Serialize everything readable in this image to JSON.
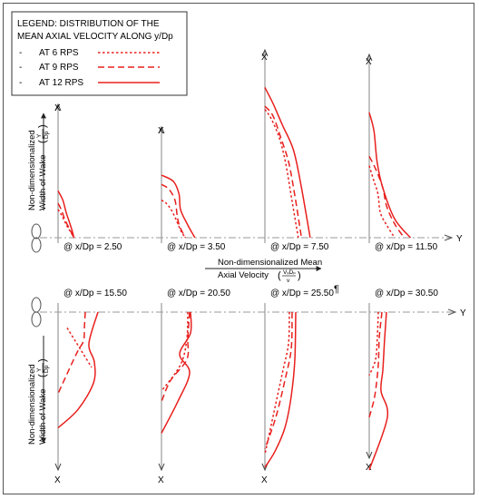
{
  "legend": {
    "title_line1": "LEGEND: DISTRIBUTION OF THE",
    "title_line2": "MEAN AXIAL VELOCITY ALONG y/Dp",
    "items": [
      {
        "bullet": "-",
        "label": "AT 6 RPS",
        "style": "dotted"
      },
      {
        "bullet": "-",
        "label": "AT 9 RPS",
        "style": "dashed"
      },
      {
        "bullet": "-",
        "label": "AT 12 RPS",
        "style": "solid"
      }
    ]
  },
  "labels": {
    "yaxis_line1": "Non-dimensionalized",
    "yaxis_line2": "Width of Wake",
    "frac_top": "Y",
    "frac_bottom": "Dp",
    "vel_line1": "Non-dimensionalized Mean",
    "vel_line2": "Axial Velocity",
    "vfrac_top": "VₓDₚ",
    "vfrac_bottom": "v",
    "pilcrow": "¶",
    "x_axis": "X",
    "y_axis": "Y"
  },
  "colors": {
    "curve": "#e8201e",
    "axis": "#9a9a9a",
    "frame": "#555555"
  },
  "chart_data": [
    {
      "type": "line",
      "title": "@ x/Dp = 2.50",
      "series": [
        {
          "name": "AT 6 RPS",
          "style": "dotted",
          "x": [
            0,
            0.2,
            0.4,
            0.6,
            0.8,
            1.0
          ],
          "y": [
            0.45,
            0.37,
            0.27,
            0.17,
            0.09,
            0.0
          ]
        },
        {
          "name": "AT 9 RPS",
          "style": "dashed",
          "x": [
            0,
            0.2,
            0.4,
            0.6,
            0.8,
            1.0
          ],
          "y": [
            0.55,
            0.45,
            0.31,
            0.2,
            0.1,
            0.0
          ]
        },
        {
          "name": "AT 12 RPS",
          "style": "solid",
          "x": [
            0,
            0.3,
            0.5,
            0.7,
            0.9,
            1.0
          ],
          "y": [
            0.75,
            0.6,
            0.41,
            0.26,
            0.1,
            0.0
          ]
        }
      ]
    },
    {
      "type": "line",
      "title": "@ x/Dp = 3.50",
      "series": [
        {
          "name": "AT 6 RPS",
          "style": "dotted",
          "x": [
            0,
            0.3,
            0.6,
            0.9,
            1.2,
            1.5
          ],
          "y": [
            0.6,
            0.55,
            0.45,
            0.3,
            0.12,
            0.0
          ]
        },
        {
          "name": "AT 9 RPS",
          "style": "dashed",
          "x": [
            0,
            0.45,
            0.85,
            1.0,
            1.15,
            1.5
          ],
          "y": [
            0.85,
            0.78,
            0.6,
            0.33,
            0.18,
            0.0
          ]
        },
        {
          "name": "AT 12 RPS",
          "style": "solid",
          "x": [
            0,
            0.75,
            1.1,
            1.2,
            1.6,
            2.1
          ],
          "y": [
            1.0,
            0.9,
            0.7,
            0.45,
            0.23,
            0.0
          ]
        }
      ]
    },
    {
      "type": "line",
      "title": "@ x/Dp = 7.50",
      "series": [
        {
          "name": "AT 6 RPS",
          "style": "dotted",
          "x": [
            0,
            0.4,
            0.9,
            1.3,
            1.7,
            2.1
          ],
          "y": [
            2.05,
            1.9,
            1.6,
            1.2,
            0.6,
            0.0
          ]
        },
        {
          "name": "AT 9 RPS",
          "style": "dashed",
          "x": [
            0,
            0.5,
            1.0,
            1.5,
            1.9,
            2.3
          ],
          "y": [
            2.1,
            1.95,
            1.6,
            1.2,
            0.65,
            0.0
          ]
        },
        {
          "name": "AT 12 RPS",
          "style": "solid",
          "x": [
            0,
            0.5,
            1.1,
            1.8,
            2.3,
            2.85
          ],
          "y": [
            2.4,
            2.15,
            1.8,
            1.4,
            0.8,
            0.0
          ]
        }
      ]
    },
    {
      "type": "line",
      "title": "@ x/Dp = 11.50",
      "series": [
        {
          "name": "AT 6 RPS",
          "style": "dotted",
          "x": [
            0,
            0.3,
            0.55,
            0.7,
            1.1,
            1.6
          ],
          "y": [
            1.15,
            0.9,
            0.7,
            0.4,
            0.2,
            0.0
          ]
        },
        {
          "name": "AT 9 RPS",
          "style": "dashed",
          "x": [
            0,
            0.4,
            0.85,
            1.1,
            1.6,
            2.2
          ],
          "y": [
            1.3,
            1.1,
            0.8,
            0.5,
            0.22,
            0.0
          ]
        },
        {
          "name": "AT 12 RPS",
          "style": "solid",
          "x": [
            0,
            0.3,
            0.5,
            0.85,
            1.6,
            2.6
          ],
          "y": [
            2.0,
            1.7,
            1.2,
            0.8,
            0.3,
            0.0
          ]
        }
      ]
    },
    {
      "type": "line",
      "title": "@ x/Dp = 15.50",
      "series": [
        {
          "name": "AT 6 RPS",
          "style": "dotted",
          "x": [
            0.5,
            0.95,
            1.4,
            1.85
          ],
          "y": [
            -0.3,
            -0.55,
            -0.8,
            -1.05
          ]
        },
        {
          "name": "AT 9 RPS",
          "style": "dashed",
          "x": [
            1.5,
            1.45,
            1.4,
            1.0,
            0.0
          ],
          "y": [
            0.0,
            -0.3,
            -0.55,
            -0.8,
            -1.55
          ]
        },
        {
          "name": "AT 12 RPS",
          "style": "solid",
          "x": [
            2.2,
            1.7,
            2.0,
            1.95,
            1.1,
            0.0
          ],
          "y": [
            0.0,
            -0.6,
            -0.95,
            -1.35,
            -1.85,
            -2.2
          ]
        }
      ]
    },
    {
      "type": "line",
      "title": "@ x/Dp = 20.50",
      "series": [
        {
          "name": "AT 6 RPS",
          "style": "dotted",
          "x": [
            1.45,
            1.4,
            1.05,
            0.0
          ],
          "y": [
            0.0,
            -0.5,
            -1.0,
            -1.5
          ]
        },
        {
          "name": "AT 9 RPS",
          "style": "dashed",
          "x": [
            1.55,
            1.45,
            1.4,
            0.5,
            0.0
          ],
          "y": [
            0.0,
            -0.5,
            -0.9,
            -1.3,
            -1.7
          ]
        },
        {
          "name": "AT 12 RPS",
          "style": "solid",
          "x": [
            1.6,
            1.6,
            1.0,
            1.55,
            0.9,
            0.0
          ],
          "y": [
            0.0,
            -0.4,
            -0.8,
            -1.15,
            -1.7,
            -2.3
          ]
        }
      ]
    },
    {
      "type": "line",
      "title": "@ x/Dp = 25.50",
      "series": [
        {
          "name": "AT 6 RPS",
          "style": "dotted",
          "x": [
            1.35,
            1.3,
            1.0,
            0.5,
            0.0
          ],
          "y": [
            0.0,
            -0.6,
            -1.1,
            -1.9,
            -2.7
          ]
        },
        {
          "name": "AT 9 RPS",
          "style": "dashed",
          "x": [
            1.5,
            1.45,
            1.1,
            0.6,
            0.0
          ],
          "y": [
            0.0,
            -0.7,
            -1.3,
            -2.0,
            -2.6
          ]
        },
        {
          "name": "AT 12 RPS",
          "style": "solid",
          "x": [
            1.7,
            1.65,
            1.45,
            1.1,
            0.55,
            0.0
          ],
          "y": [
            0.0,
            -0.9,
            -1.6,
            -2.2,
            -2.65,
            -2.95
          ]
        }
      ]
    },
    {
      "type": "line",
      "title": "@ x/Dp = 30.50",
      "series": [
        {
          "name": "AT 6 RPS",
          "style": "dotted",
          "x": [
            0.5,
            0.45,
            0.35,
            0.0
          ],
          "y": [
            0.0,
            -0.45,
            -0.9,
            -1.2
          ]
        },
        {
          "name": "AT 9 RPS",
          "style": "dashed",
          "x": [
            0.7,
            0.55,
            0.5,
            0.3,
            0.0
          ],
          "y": [
            0.0,
            -0.5,
            -1.0,
            -1.6,
            -2.0
          ]
        },
        {
          "name": "AT 12 RPS",
          "style": "solid",
          "x": [
            0.95,
            0.85,
            0.75,
            0.65,
            1.0,
            0.0
          ],
          "y": [
            0.0,
            -0.5,
            -1.1,
            -1.5,
            -2.0,
            -3.0
          ]
        }
      ]
    }
  ]
}
